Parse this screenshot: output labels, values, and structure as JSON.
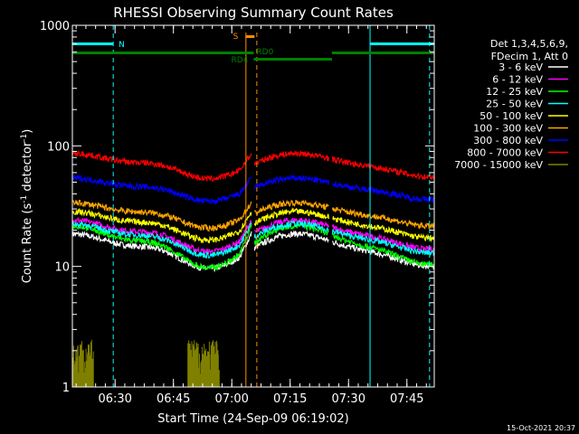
{
  "chart_data": {
    "type": "line",
    "title": "RHESSI Observing Summary Count Rates",
    "xlabel": "Start Time (24-Sep-09 06:19:02)",
    "ylabel_main": "Count Rate (s",
    "ylabel_sup1": "-1",
    "ylabel_mid": " detector",
    "ylabel_sup2": "-1",
    "ylabel_end": ")",
    "y_scale": "log",
    "ylim": [
      1,
      1000
    ],
    "xlim_minutes": [
      0,
      93
    ],
    "x_ticks": [
      {
        "minute": 10.97,
        "label": "06:30"
      },
      {
        "minute": 25.97,
        "label": "06:45"
      },
      {
        "minute": 40.97,
        "label": "07:00"
      },
      {
        "minute": 55.97,
        "label": "07:15"
      },
      {
        "minute": 70.97,
        "label": "07:30"
      },
      {
        "minute": 85.97,
        "label": "07:45"
      }
    ],
    "y_ticks": [
      {
        "value": 1,
        "label": "1"
      },
      {
        "value": 10,
        "label": "10"
      },
      {
        "value": 100,
        "label": "100"
      },
      {
        "value": 1000,
        "label": "1000"
      }
    ],
    "legend_header": [
      "Det 1,3,4,5,6,9,",
      "FDecim 1, Att 0"
    ],
    "series": [
      {
        "name": "3 - 6 keV",
        "color": "#ffffff",
        "base": 11,
        "amp": 0.33
      },
      {
        "name": "6 - 12 keV",
        "color": "#ff00ff",
        "base": 15,
        "amp": 0.3
      },
      {
        "name": "12 - 25 keV",
        "color": "#00ff00",
        "base": 11.5,
        "amp": 0.4
      },
      {
        "name": "25 - 50 keV",
        "color": "#00ffff",
        "base": 14,
        "amp": 0.3
      },
      {
        "name": "50 - 100 keV",
        "color": "#ffff00",
        "base": 18.5,
        "amp": 0.27
      },
      {
        "name": "100 - 300 keV",
        "color": "#ffa500",
        "base": 23,
        "amp": 0.24
      },
      {
        "name": "300 - 800 keV",
        "color": "#0000ff",
        "base": 38,
        "amp": 0.22
      },
      {
        "name": "800 - 7000 keV",
        "color": "#ff0000",
        "base": 59,
        "amp": 0.24
      },
      {
        "name": "7000 - 15000 keV",
        "color": "#808000",
        "base": 1,
        "amp": 0
      }
    ],
    "flags": {
      "night_label": "N",
      "night_color": "#00ffff",
      "night_intervals": [
        [
          0,
          10.5
        ],
        [
          76.5,
          93
        ]
      ],
      "saa_label": "S",
      "saa_color": "#ff8c00",
      "saa_interval": [
        44.5,
        46.8
      ],
      "rd_labels": [
        "RD4",
        "RD0"
      ],
      "rd_color": "#008000",
      "rd_intervals": [
        [
          0,
          46.6
        ],
        [
          46.6,
          66.7
        ],
        [
          66.7,
          93
        ]
      ],
      "rd0_interval": [
        46.6,
        66.7
      ],
      "cyan_vlines": [
        0,
        10.5,
        76.5,
        91.8
      ],
      "orange_vlines": [
        44.6,
        47.4
      ]
    },
    "olive_bursts": [
      [
        0,
        5.5
      ],
      [
        29.7,
        37.8
      ]
    ]
  },
  "timestamp": "15-Oct-2021 20:37"
}
